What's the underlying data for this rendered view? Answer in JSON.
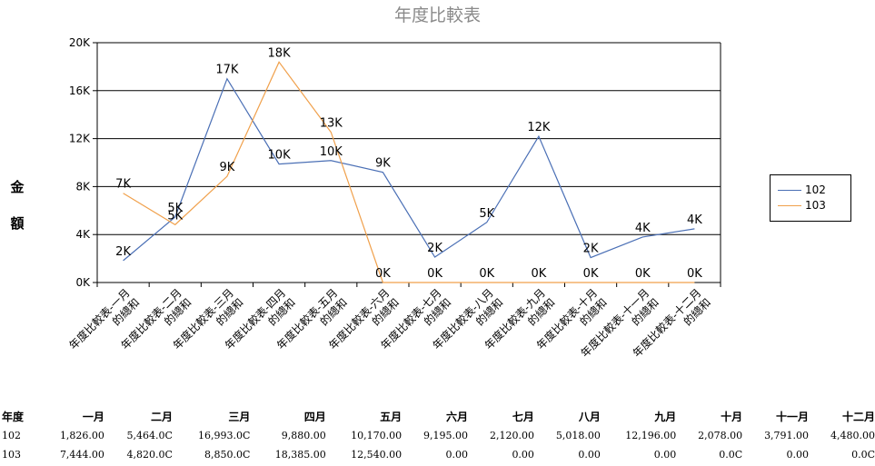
{
  "chart_data": {
    "type": "line",
    "title": "年度比較表",
    "ylabel": "金額",
    "xlabel": "",
    "ylim": [
      0,
      20000
    ],
    "y_ticks": [
      "0K",
      "4K",
      "8K",
      "12K",
      "16K",
      "20K"
    ],
    "y_tick_values": [
      0,
      4000,
      8000,
      12000,
      16000,
      20000
    ],
    "grid": "horizontal",
    "legend_position": "right",
    "categories": [
      "年度比較表-一月 的總和",
      "年度比較表-二月 的總和",
      "年度比較表-三月 的總和",
      "年度比較表-四月 的總和",
      "年度比較表-五月 的總和",
      "年度比較表-六月 的總和",
      "年度比較表-七月 的總和",
      "年度比較表-八月 的總和",
      "年度比較表-九月 的總和",
      "年度比較表-十月 的總和",
      "年度比較表-十一月 的總和",
      "年度比較表-十二月 的總和"
    ],
    "series": [
      {
        "name": "102",
        "color": "#4a6fb5",
        "values": [
          1826,
          5464,
          16993,
          9880,
          10170,
          9195,
          2120,
          5018,
          12196,
          2078,
          3791,
          4480
        ],
        "labels": [
          "2K",
          "5K",
          "17K",
          "10K",
          "10K",
          "9K",
          "2K",
          "5K",
          "12K",
          "2K",
          "4K",
          "4K"
        ]
      },
      {
        "name": "103",
        "color": "#f0a04b",
        "values": [
          7444,
          4820,
          8850,
          18385,
          12540,
          0,
          0,
          0,
          0,
          0,
          0,
          0
        ],
        "labels": [
          "7K",
          "5K",
          "9K",
          "18K",
          "13K",
          "0K",
          "0K",
          "0K",
          "0K",
          "0K",
          "0K",
          "0K"
        ]
      }
    ]
  },
  "table": {
    "headers": [
      "年度",
      "一月",
      "二月",
      "三月",
      "四月",
      "五月",
      "六月",
      "七月",
      "八月",
      "九月",
      "十月",
      "十一月",
      "十二月"
    ],
    "rows": [
      [
        "102",
        "1,826.00",
        "5,464.0C",
        "16,993.0C",
        "9,880.00",
        "10,170.00",
        "9,195.00",
        "2,120.00",
        "5,018.00",
        "12,196.00",
        "2,078.00",
        "3,791.00",
        "4,480.00"
      ],
      [
        "103",
        "7,444.00",
        "4,820.0C",
        "8,850.0C",
        "18,385.00",
        "12,540.00",
        "0.00",
        "0.00",
        "0.00",
        "0.00",
        "0.0C",
        "0.00",
        "0.0C"
      ]
    ]
  }
}
